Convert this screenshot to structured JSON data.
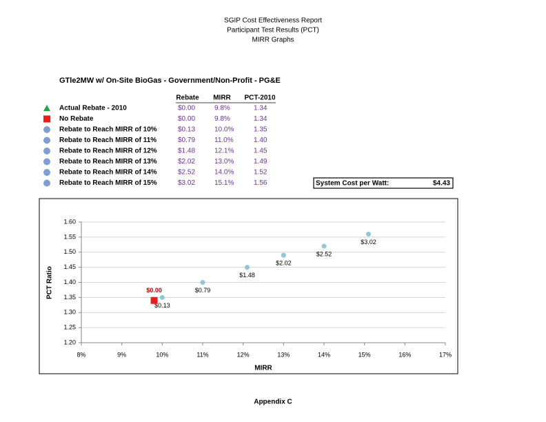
{
  "header": {
    "lines": [
      "SGIP Cost Effectiveness Report",
      "Participant Test Results (PCT)",
      "MIRR Graphs"
    ]
  },
  "subtitle": "GTle2MW w/ On-Site BioGas - Government/Non-Profit - PG&E",
  "table": {
    "columns": [
      "Rebate",
      "MIRR",
      "PCT-2010"
    ],
    "rows": [
      {
        "marker": "triangle",
        "color": "#27a33f",
        "label": "Actual Rebate - 2010",
        "rebate": "$0.00",
        "mirr": "9.8%",
        "pct": "1.34"
      },
      {
        "marker": "square",
        "color": "#e3201b",
        "label": "No Rebate",
        "rebate": "$0.00",
        "mirr": "9.8%",
        "pct": "1.34"
      },
      {
        "marker": "circle",
        "color": "#7f9fd0",
        "label": "Rebate to Reach MIRR of 10%",
        "rebate": "$0.13",
        "mirr": "10.0%",
        "pct": "1.35"
      },
      {
        "marker": "circle",
        "color": "#7f9fd0",
        "label": "Rebate to Reach MIRR of 11%",
        "rebate": "$0.79",
        "mirr": "11.0%",
        "pct": "1.40"
      },
      {
        "marker": "circle",
        "color": "#7f9fd0",
        "label": "Rebate to Reach MIRR of 12%",
        "rebate": "$1.48",
        "mirr": "12.1%",
        "pct": "1.45"
      },
      {
        "marker": "circle",
        "color": "#7f9fd0",
        "label": "Rebate to Reach MIRR of 13%",
        "rebate": "$2.02",
        "mirr": "13.0%",
        "pct": "1.49"
      },
      {
        "marker": "circle",
        "color": "#7f9fd0",
        "label": "Rebate to Reach MIRR of 14%",
        "rebate": "$2.52",
        "mirr": "14.0%",
        "pct": "1.52"
      },
      {
        "marker": "circle",
        "color": "#7f9fd0",
        "label": "Rebate to Reach MIRR of 15%",
        "rebate": "$3.02",
        "mirr": "15.1%",
        "pct": "1.56"
      }
    ]
  },
  "system_cost": {
    "label": "System Cost per Watt:",
    "value": "$4.43"
  },
  "chart_data": {
    "type": "scatter",
    "x_label": "MIRR",
    "y_label": "PCT Ratio",
    "grid": true,
    "xlim": [
      8,
      17
    ],
    "xticks": [
      {
        "value": 8,
        "label": "8%"
      },
      {
        "value": 9,
        "label": "9%"
      },
      {
        "value": 10,
        "label": "10%"
      },
      {
        "value": 11,
        "label": "11%"
      },
      {
        "value": 12,
        "label": "12%"
      },
      {
        "value": 13,
        "label": "13%"
      },
      {
        "value": 14,
        "label": "14%"
      },
      {
        "value": 15,
        "label": "15%"
      },
      {
        "value": 16,
        "label": "16%"
      },
      {
        "value": 17,
        "label": "17%"
      }
    ],
    "ylim": [
      1.2,
      1.6
    ],
    "yticks": [
      {
        "value": 1.2,
        "label": "1.20"
      },
      {
        "value": 1.25,
        "label": "1.25"
      },
      {
        "value": 1.3,
        "label": "1.30"
      },
      {
        "value": 1.35,
        "label": "1.35"
      },
      {
        "value": 1.4,
        "label": "1.40"
      },
      {
        "value": 1.45,
        "label": "1.45"
      },
      {
        "value": 1.5,
        "label": "1.50"
      },
      {
        "value": 1.55,
        "label": "1.55"
      },
      {
        "value": 1.6,
        "label": "1.60"
      }
    ],
    "series": [
      {
        "marker": "circle",
        "color": "#8ec6df",
        "label_color": "#000000",
        "label_position": "below",
        "x": [
          10.0,
          11.0,
          12.1,
          13.0,
          14.0,
          15.1
        ],
        "values": [
          1.35,
          1.4,
          1.45,
          1.49,
          1.52,
          1.56
        ],
        "point_labels": [
          "$0.13",
          "$0.79",
          "$1.48",
          "$2.02",
          "$2.52",
          "$3.02"
        ]
      },
      {
        "marker": "square",
        "color": "#e3201b",
        "label_color": "#c00000",
        "label_position": "above",
        "x": [
          9.8
        ],
        "values": [
          1.34
        ],
        "point_labels": [
          "$0.00"
        ]
      }
    ]
  },
  "footer": "Appendix C"
}
